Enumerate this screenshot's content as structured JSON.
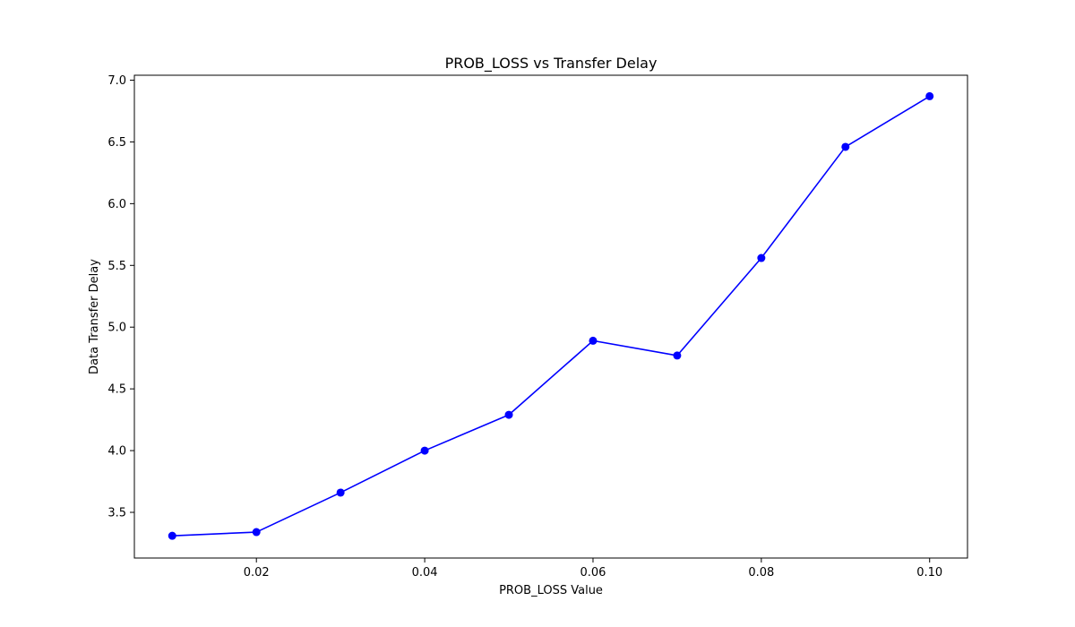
{
  "chart_data": {
    "type": "line",
    "title": "PROB_LOSS vs Transfer Delay",
    "xlabel": "PROB_LOSS Value",
    "ylabel": "Data Transfer Delay",
    "x": [
      0.01,
      0.02,
      0.03,
      0.04,
      0.05,
      0.06,
      0.07,
      0.08,
      0.09,
      0.1
    ],
    "series": [
      {
        "values": [
          3.31,
          3.34,
          3.66,
          4.0,
          4.29,
          4.89,
          4.77,
          5.56,
          6.46,
          6.87
        ],
        "color": "#0000ff",
        "marker": "circle"
      }
    ],
    "xlim": [
      0.0055,
      0.1045
    ],
    "ylim": [
      3.13,
      7.04
    ],
    "xticks": [
      0.02,
      0.04,
      0.06,
      0.08,
      0.1
    ],
    "xtick_labels": [
      "0.02",
      "0.04",
      "0.06",
      "0.08",
      "0.10"
    ],
    "yticks": [
      3.5,
      4.0,
      4.5,
      5.0,
      5.5,
      6.0,
      6.5,
      7.0
    ],
    "ytick_labels": [
      "3.5",
      "4.0",
      "4.5",
      "5.0",
      "5.5",
      "6.0",
      "6.5",
      "7.0"
    ],
    "grid": false,
    "legend": "none"
  }
}
